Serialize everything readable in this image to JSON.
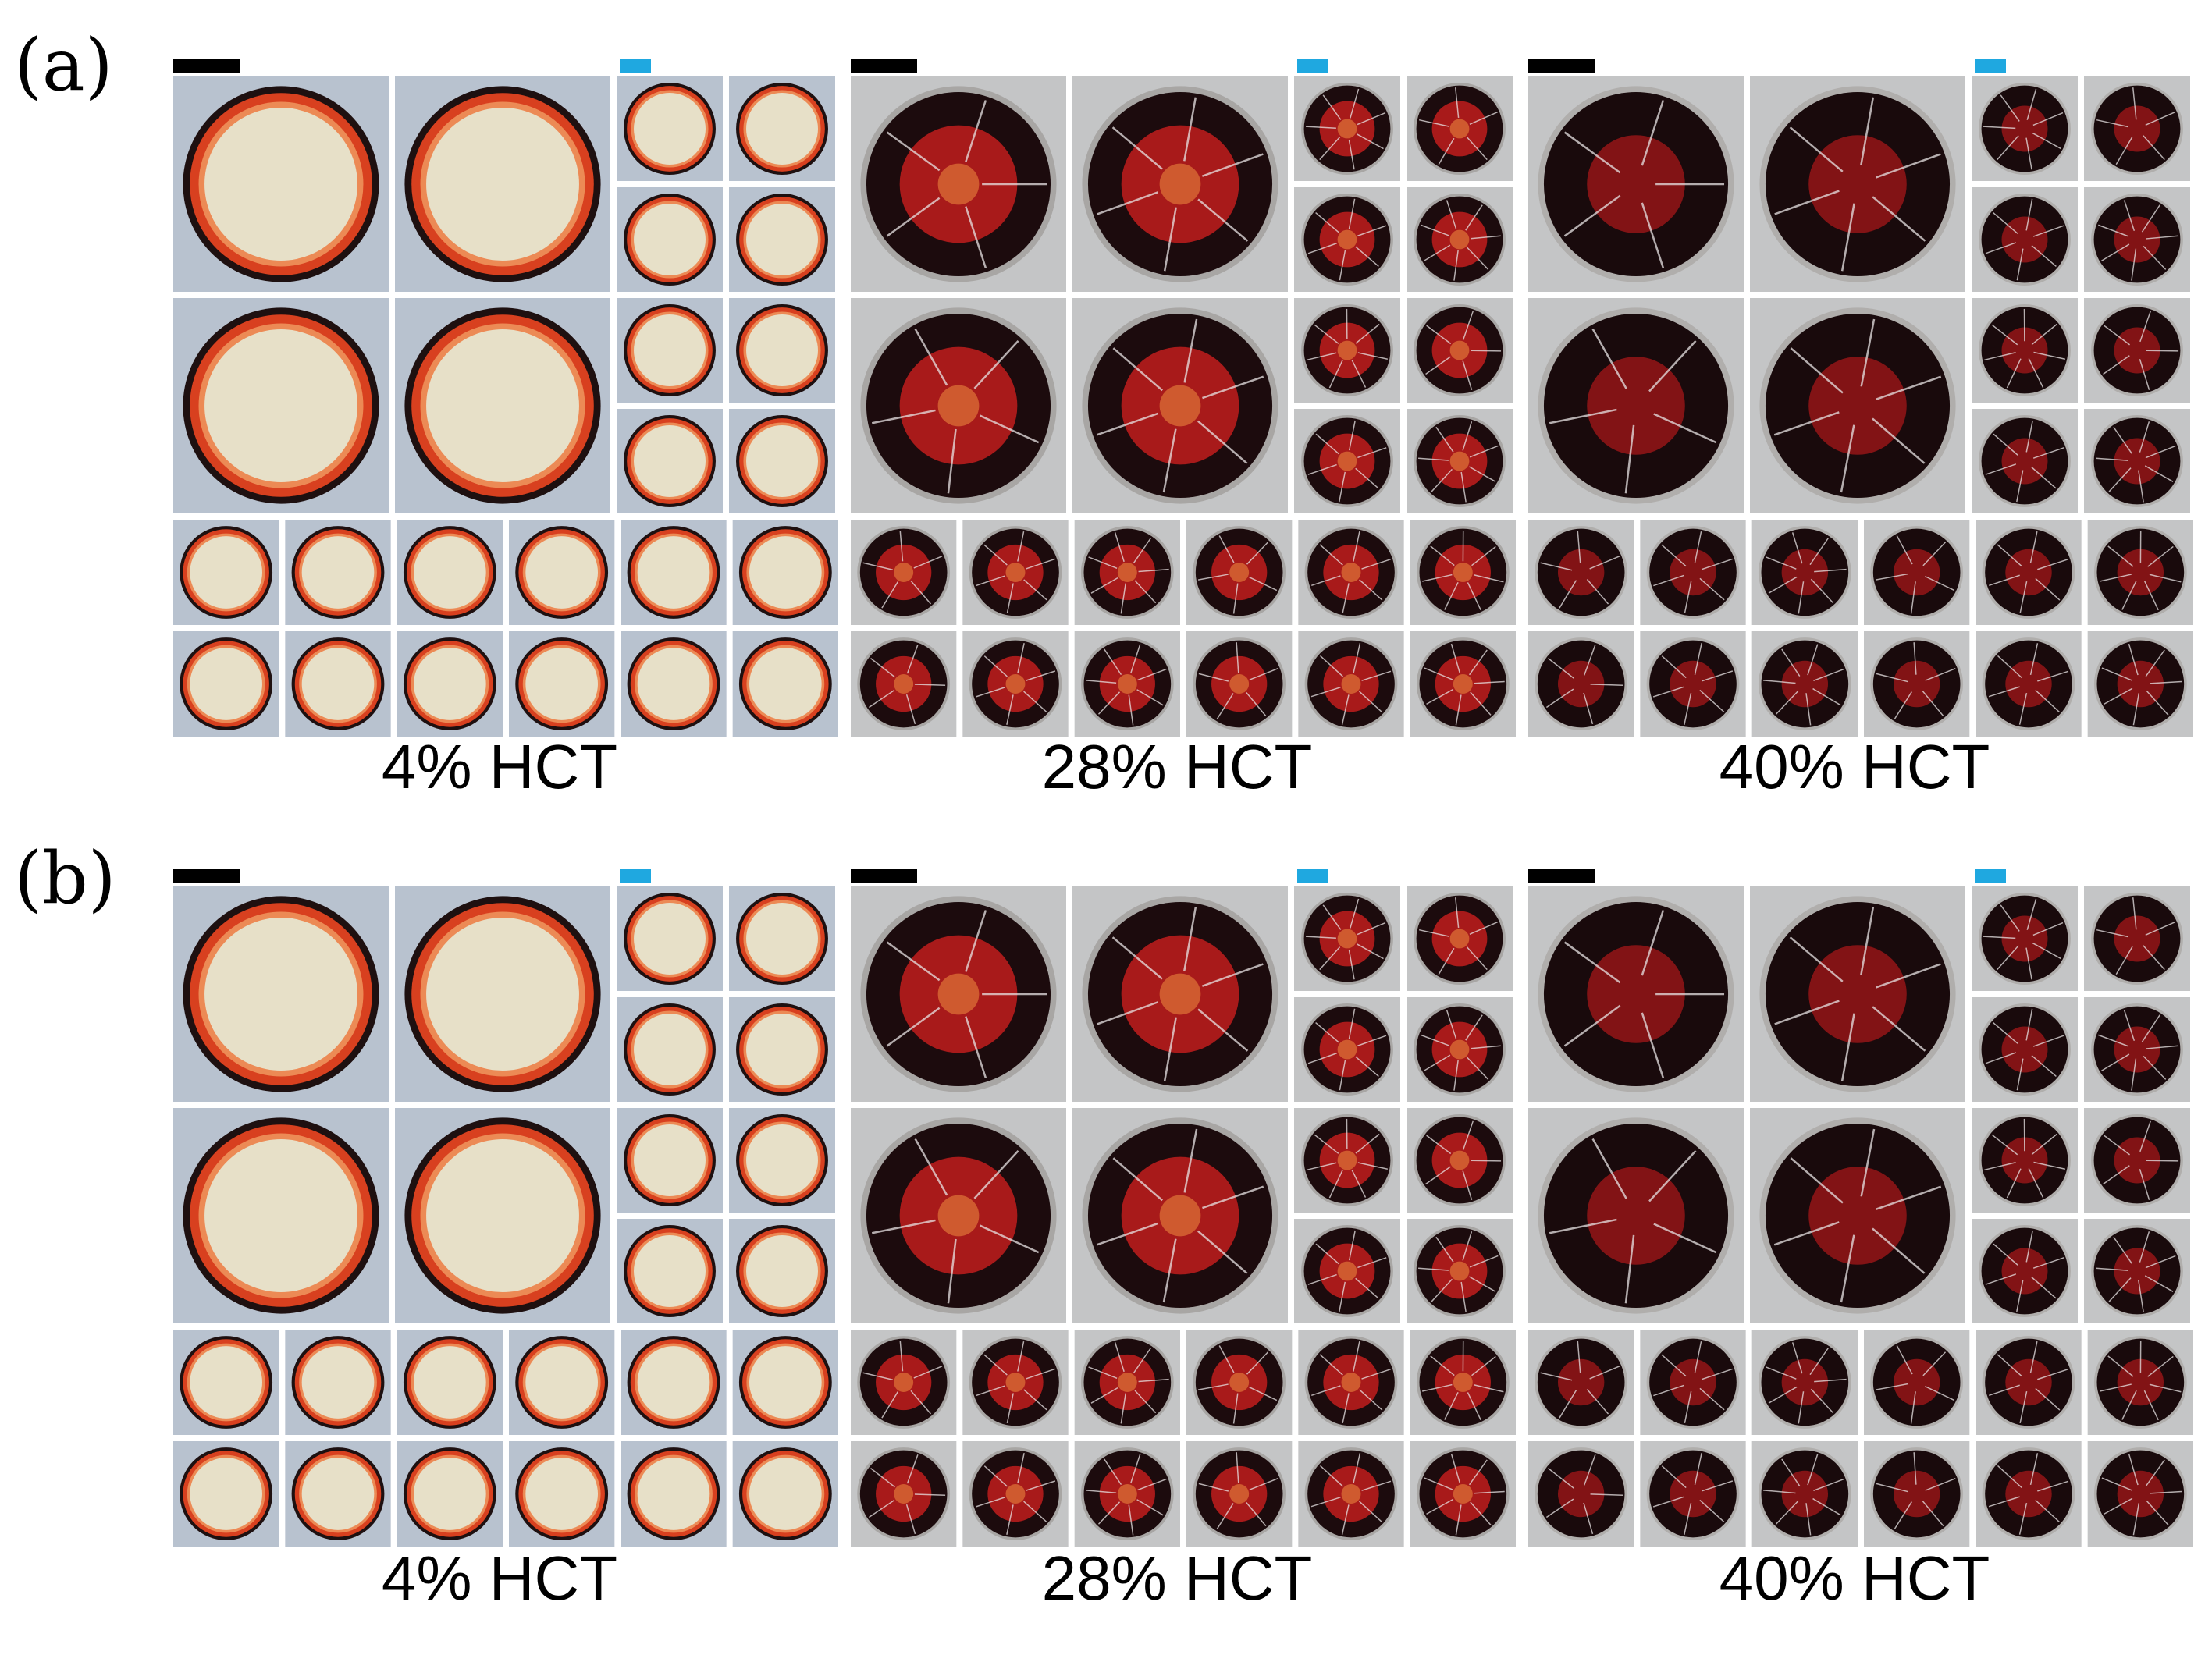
{
  "figure": {
    "background": "#ffffff",
    "cell_background": "#c9ccce",
    "scalebar_primary_color": "#000000",
    "scalebar_secondary_color": "#1fa8e0",
    "panels": [
      {
        "letter": "(a)",
        "groups": [
          {
            "label": "4% HCT",
            "type": "light"
          },
          {
            "label": "28% HCT",
            "type": "mid"
          },
          {
            "label": "40% HCT",
            "type": "dark"
          }
        ]
      },
      {
        "letter": "(b)",
        "groups": [
          {
            "label": "4% HCT",
            "type": "light"
          },
          {
            "label": "28% HCT",
            "type": "mid"
          },
          {
            "label": "40% HCT",
            "type": "dark"
          }
        ]
      }
    ],
    "drop_styles": {
      "light": {
        "rim": "#1e1010",
        "ring": "#d8401f",
        "ring_inner": "#ec8a55",
        "core": "#e7e0c8"
      },
      "mid": {
        "rim": "#a8a6a4",
        "ring": "#1c0b0d",
        "ring_inner": "#2a0d10",
        "core": "#b81c1c"
      },
      "dark": {
        "rim": "#b0aeac",
        "ring": "#190a0c",
        "ring_inner": "#220b0e",
        "core": "#8e1416"
      }
    }
  }
}
